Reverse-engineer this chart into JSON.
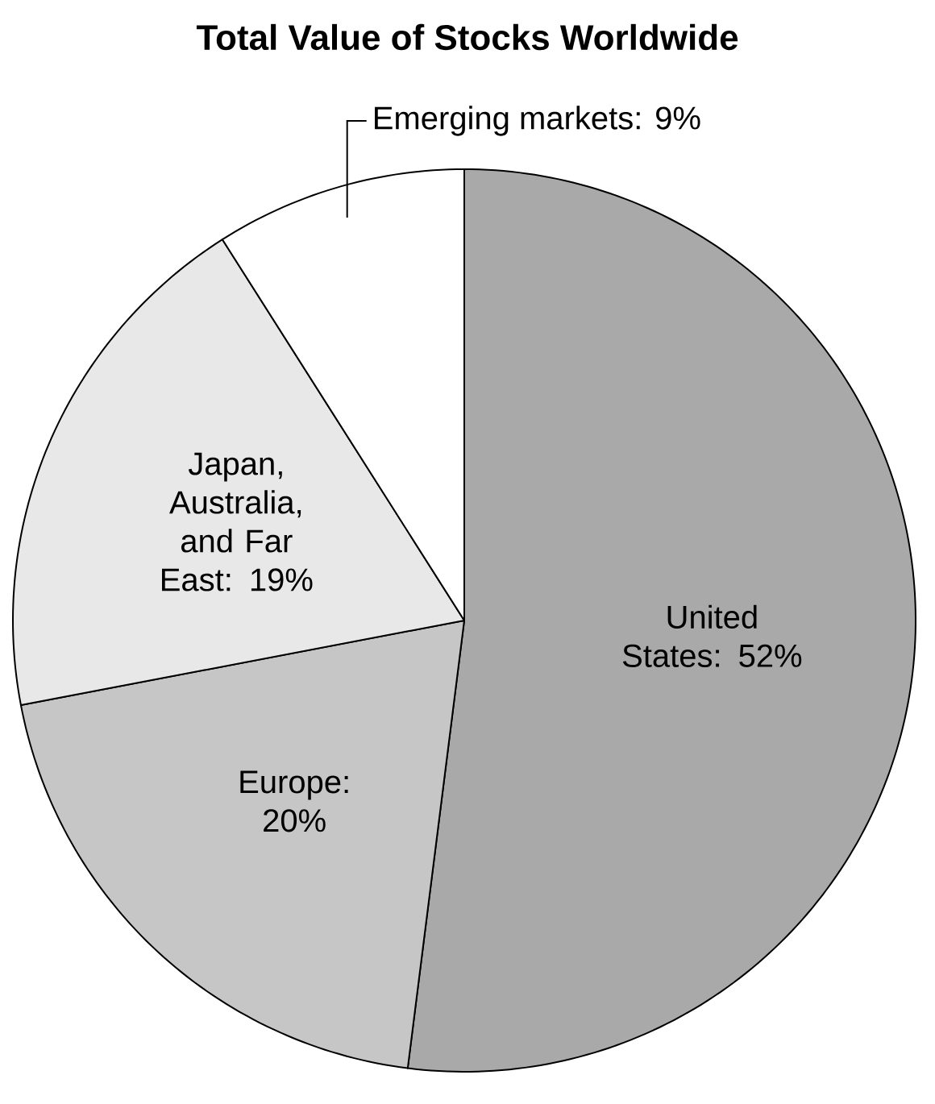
{
  "chart_data": {
    "type": "pie",
    "title": "Total Value of Stocks Worldwide",
    "categories": [
      "United States: 52%",
      "Europe: 20%",
      "Japan, Australia, and Far East: 19%",
      "Emerging markets: 9%"
    ],
    "values": [
      52,
      20,
      19,
      9
    ],
    "colors": [
      "#a9a9a9",
      "#c6c6c6",
      "#e8e8e8",
      "#ffffff"
    ]
  }
}
